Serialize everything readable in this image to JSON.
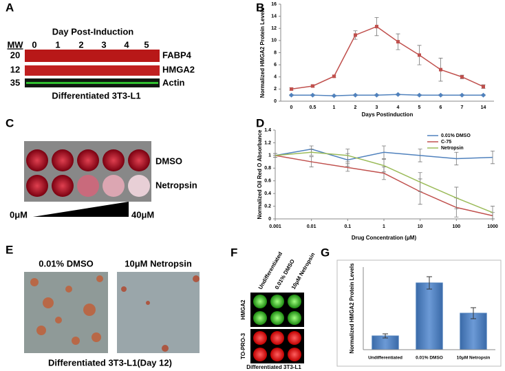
{
  "panel_labels": [
    "A",
    "B",
    "C",
    "D",
    "E",
    "F",
    "G"
  ],
  "blot": {
    "title": "Day Post-Induction",
    "mw_header": "MW",
    "days": [
      "0",
      "1",
      "2",
      "3",
      "4",
      "5"
    ],
    "rows": [
      {
        "mw": "20",
        "label": "FABP4"
      },
      {
        "mw": "12",
        "label": "HMGA2"
      },
      {
        "mw": "35",
        "label": "Actin"
      }
    ],
    "caption": "Differentiated 3T3-L1"
  },
  "wells": {
    "rows": [
      "DMSO",
      "Netropsin"
    ],
    "low": "0μM",
    "high": "40μM"
  },
  "micrographs": {
    "labels": [
      "0.01% DMSO",
      "10μM  Netropsin"
    ],
    "caption": "Differentiated 3T3-L1(Day 12)"
  },
  "dot_blot": {
    "columns": [
      "Undifferentiated",
      "0.01% DMSO",
      "10μM Netropsin"
    ],
    "rows": [
      "HMGA2",
      "TO-PRO-3"
    ],
    "caption": "Differentiated 3T3-L1"
  },
  "chart_data": [
    {
      "type": "line",
      "y_label": "Normalized HMGA2 Protein Levels",
      "x_label": "Days Postinduction",
      "categories": [
        "0",
        "0.5",
        "1",
        "2",
        "3",
        "4",
        "5",
        "6",
        "7",
        "14"
      ],
      "ylim": [
        0,
        16
      ],
      "yticks": [
        0,
        2,
        4,
        6,
        8,
        10,
        12,
        14,
        16
      ],
      "series": [
        {
          "color": "#4f81bd",
          "marker": "diamond",
          "values": [
            1,
            1,
            0.9,
            1,
            1,
            1.1,
            1,
            1,
            1,
            1
          ],
          "errors": [
            0.1,
            0.1,
            0.1,
            0.1,
            0.1,
            0.1,
            0.1,
            0.1,
            0.1,
            0.1
          ]
        },
        {
          "color": "#c0504d",
          "marker": "square",
          "values": [
            2,
            2.5,
            4.1,
            10.9,
            12.3,
            9.8,
            7.6,
            5.2,
            4,
            2.4
          ],
          "errors": [
            0.2,
            0.2,
            0.2,
            0.7,
            1.5,
            1.3,
            1.6,
            1.9,
            0.3,
            0.3
          ]
        }
      ]
    },
    {
      "type": "line",
      "y_label": "Normalized Oil Red O Absorbance",
      "x_label": "Drug Concentration (μM)",
      "x": [
        0.001,
        0.01,
        0.1,
        1,
        10,
        100,
        1000
      ],
      "xscale": "log",
      "xlim": [
        0.001,
        1000
      ],
      "xticks": [
        0.001,
        0.01,
        0.1,
        1,
        10,
        100,
        1000
      ],
      "ylim": [
        0,
        1.4
      ],
      "yticks": [
        0,
        0.2,
        0.4,
        0.6,
        0.8,
        1,
        1.2,
        1.4
      ],
      "legend": "top-right",
      "series": [
        {
          "name": "0.01% DMSO",
          "color": "#4f81bd",
          "values": [
            1,
            1.1,
            0.93,
            1.05,
            1,
            0.95,
            0.97
          ],
          "errors": [
            0.03,
            0.05,
            0.1,
            0.1,
            0.1,
            0.1,
            0.1
          ]
        },
        {
          "name": "C-75",
          "color": "#c0504d",
          "values": [
            1,
            0.9,
            0.81,
            0.72,
            0.43,
            0.18,
            0.05
          ],
          "errors": [
            0.03,
            0.08,
            0.06,
            0.1,
            0.2,
            0.15,
            0.05
          ]
        },
        {
          "name": "Netropsin",
          "color": "#9bbb59",
          "values": [
            1,
            1.05,
            1,
            0.84,
            0.58,
            0.33,
            0.1
          ],
          "errors": [
            0.03,
            0.05,
            0.1,
            0.1,
            0.15,
            0.17,
            0.1
          ]
        }
      ]
    },
    {
      "type": "bar",
      "y_label": "Normalized HMGA2 Protein Levels",
      "categories": [
        "Undifferentiated",
        "0.01% DMSO",
        "10μM Netropsin"
      ],
      "values": [
        1,
        4.85,
        2.65
      ],
      "errors": [
        0.15,
        0.45,
        0.4
      ],
      "color": "#4f81bd",
      "ylim": [
        0,
        6
      ]
    }
  ]
}
